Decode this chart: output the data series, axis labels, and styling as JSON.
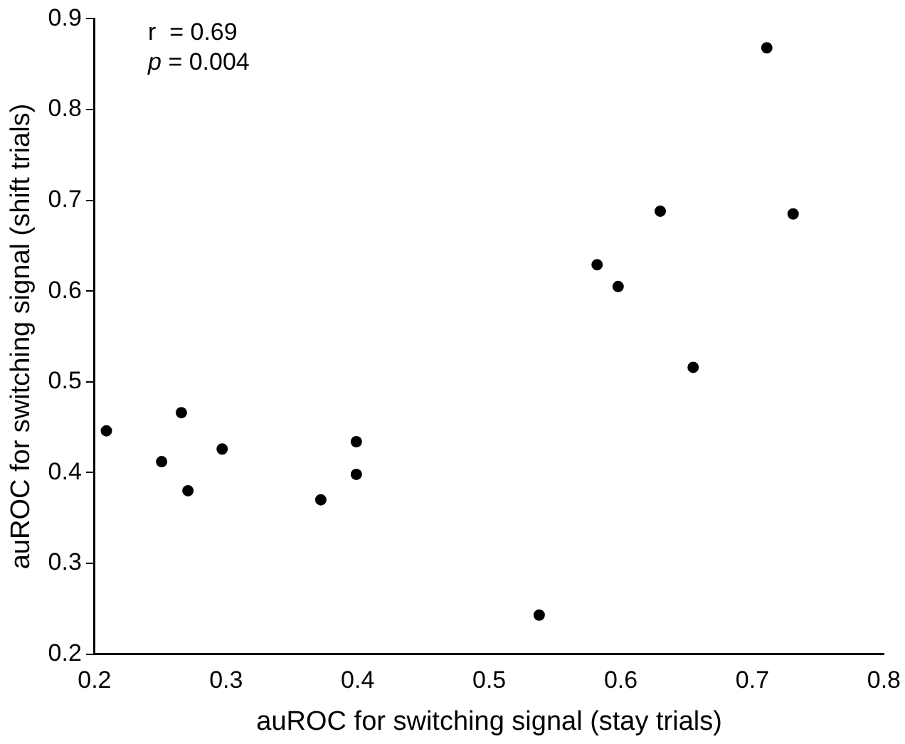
{
  "chart_data": {
    "type": "scatter",
    "xlabel": "auROC for switching signal (stay trials)",
    "ylabel": "auROC for switching signal (shift trials)",
    "annotations": [
      "r  = 0.69",
      "p = 0.004"
    ],
    "x": [
      0.209,
      0.251,
      0.266,
      0.271,
      0.297,
      0.372,
      0.399,
      0.399,
      0.538,
      0.582,
      0.598,
      0.63,
      0.655,
      0.711,
      0.731
    ],
    "values": [
      0.446,
      0.412,
      0.466,
      0.38,
      0.426,
      0.37,
      0.434,
      0.398,
      0.243,
      0.629,
      0.605,
      0.688,
      0.516,
      0.868,
      0.685
    ],
    "color": "#000000",
    "marker": "circle",
    "xlim": [
      0.2,
      0.8
    ],
    "xticks": [
      0.2,
      0.3,
      0.4,
      0.5,
      0.6,
      0.7,
      0.8
    ],
    "ylim": [
      0.2,
      0.9
    ],
    "yticks": [
      0.2,
      0.3,
      0.4,
      0.5,
      0.6,
      0.7,
      0.8,
      0.9
    ],
    "grid": false,
    "legend": false
  }
}
